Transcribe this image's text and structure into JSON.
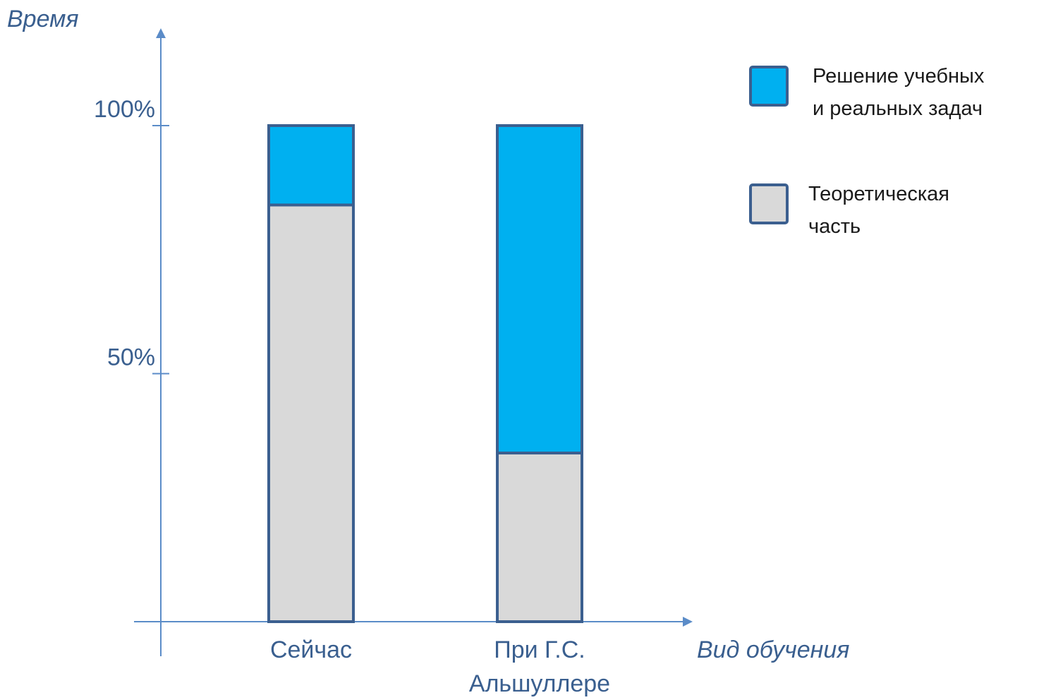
{
  "chart_data": {
    "type": "bar",
    "stacked": true,
    "ylabel": "Время",
    "xlabel": "Вид обучения",
    "categories": [
      [
        "Сейчас"
      ],
      [
        "При Г.С.",
        "Альшуллере"
      ]
    ],
    "yticks": [
      {
        "value": 50,
        "label": "50%"
      },
      {
        "value": 100,
        "label": "100%"
      }
    ],
    "ylim": [
      0,
      122
    ],
    "series": [
      {
        "name": [
          "Теоретическая",
          "часть"
        ],
        "values": [
          84,
          34
        ],
        "color": "#d9d9d9"
      },
      {
        "name": [
          "Решение учебных",
          "и реальных задач"
        ],
        "values": [
          16,
          66
        ],
        "color": "#00b0f0"
      }
    ],
    "legend_position": "top-right",
    "legend_order": [
      1,
      0
    ],
    "axis_color": "#5b8cc8",
    "bar_stroke_color": "#3b5f8f",
    "label_color": "#3a5f8f",
    "grid": false
  }
}
